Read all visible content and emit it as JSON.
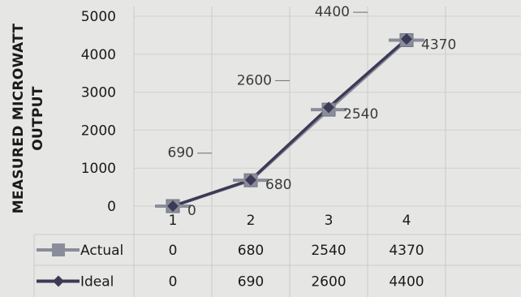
{
  "chart_data": {
    "type": "line",
    "title": "",
    "ylabel_lines": [
      "MEASURED MICROWATT",
      "OUTPUT"
    ],
    "xlabel": "",
    "categories": [
      "1",
      "2",
      "3",
      "4"
    ],
    "ylim": [
      0,
      5000
    ],
    "yticks": [
      "0",
      "1000",
      "2000",
      "3000",
      "4000",
      "5000"
    ],
    "grid": true,
    "legend": "data-table-below",
    "series": [
      {
        "name": "Actual",
        "marker": "square",
        "color": "#8a8d99",
        "values": [
          0,
          680,
          2540,
          4370
        ],
        "labels": [
          "0",
          "680",
          "2540",
          "4370"
        ]
      },
      {
        "name": "Ideal",
        "marker": "diamond",
        "color": "#3c3a56",
        "values": [
          0,
          690,
          2600,
          4400
        ],
        "labels": [
          "",
          "690",
          "2600",
          "4400"
        ]
      }
    ],
    "table": {
      "rows": [
        {
          "name": "Actual",
          "cells": [
            "0",
            "680",
            "2540",
            "4370"
          ]
        },
        {
          "name": "Ideal",
          "cells": [
            "0",
            "690",
            "2600",
            "4400"
          ]
        }
      ]
    }
  }
}
